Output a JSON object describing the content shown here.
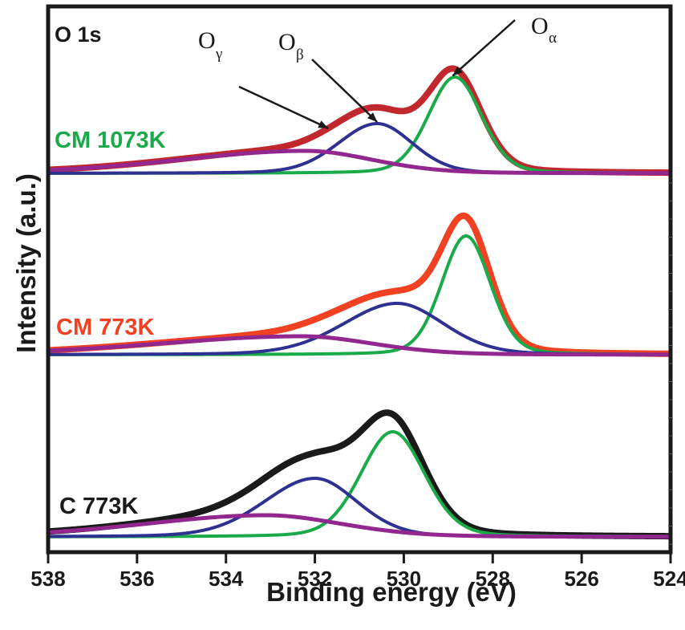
{
  "chart_data": {
    "type": "line",
    "title": "",
    "core_level_label": "O 1s",
    "xlabel": "Binding energy (eV)",
    "ylabel": "Intensity (a.u.)",
    "xlim": [
      538,
      524
    ],
    "x_reversed": true,
    "xticks": [
      538,
      536,
      534,
      532,
      530,
      528,
      526,
      524
    ],
    "xtick_labels": [
      "538",
      "536",
      "534",
      "532",
      "530",
      "528",
      "526",
      "524"
    ],
    "ylim": [
      -19,
      661
    ],
    "y_ticks_labeled": false,
    "grid": false,
    "legend": "none",
    "component_colors": {
      "O_alpha": "#1aaa4a",
      "O_beta": "#2e3192",
      "O_gamma": "#92278f"
    },
    "spectra": [
      {
        "name": "CM 1073K",
        "label_color": "#1aaa4a",
        "envelope_color": "#c1272d",
        "offset": 453,
        "components": [
          {
            "name": "O_alpha",
            "center_eV": 528.85,
            "height": 120,
            "sigma_eV": 0.6,
            "tail_left": 1.0
          },
          {
            "name": "O_beta",
            "center_eV": 530.6,
            "height": 62,
            "sigma_eV": 0.8,
            "tail_left": 1.1
          },
          {
            "name": "O_gamma",
            "center_eV": 532.2,
            "height": 28,
            "sigma_eV": 1.5,
            "tail_left": 1.9
          }
        ]
      },
      {
        "name": "CM 773K",
        "label_color": "#f04123",
        "envelope_color": "#f04123",
        "offset": 227,
        "components": [
          {
            "name": "O_alpha",
            "center_eV": 528.6,
            "height": 148,
            "sigma_eV": 0.55,
            "tail_left": 1.0
          },
          {
            "name": "O_beta",
            "center_eV": 530.15,
            "height": 64,
            "sigma_eV": 1.05,
            "tail_left": 1.15
          },
          {
            "name": "O_gamma",
            "center_eV": 532.3,
            "height": 23,
            "sigma_eV": 1.6,
            "tail_left": 2.0
          }
        ]
      },
      {
        "name": "C 773K",
        "label_color": "#1a1a1a",
        "envelope_color": "#1a1a1a",
        "offset": 0,
        "components": [
          {
            "name": "O_alpha",
            "center_eV": 530.25,
            "height": 131,
            "sigma_eV": 0.72,
            "tail_left": 1.0
          },
          {
            "name": "O_beta",
            "center_eV": 532.0,
            "height": 73,
            "sigma_eV": 0.95,
            "tail_left": 1.2
          },
          {
            "name": "O_gamma",
            "center_eV": 533.1,
            "height": 27,
            "sigma_eV": 1.7,
            "tail_left": 1.6
          }
        ]
      }
    ],
    "annotations": [
      {
        "name": "O_gamma",
        "base": "O",
        "sub": "γ",
        "points_to_eV": 531.7,
        "spectrum": "CM 1073K"
      },
      {
        "name": "O_beta",
        "base": "O",
        "sub": "β",
        "points_to_eV": 530.6,
        "spectrum": "CM 1073K"
      },
      {
        "name": "O_alpha",
        "base": "O",
        "sub": "α",
        "points_to_eV": 528.9,
        "spectrum": "CM 1073K"
      }
    ]
  }
}
